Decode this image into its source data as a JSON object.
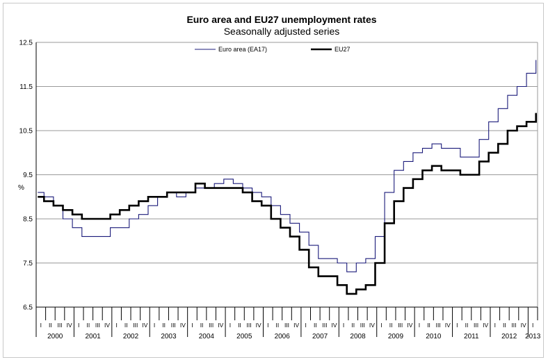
{
  "chart_data": {
    "type": "line",
    "title": "Euro area and EU27 unemployment rates",
    "subtitle": "Seasonally adjusted series",
    "ylabel": "%",
    "ylim": [
      6.5,
      12.5
    ],
    "yticks": [
      "12.5",
      "11.5",
      "10.5",
      "9.5",
      "8.5",
      "7.5",
      "6.5"
    ],
    "quarter_labels": [
      "I",
      "II",
      "III",
      "IV"
    ],
    "years": [
      "2000",
      "2001",
      "2002",
      "2003",
      "2004",
      "2005",
      "2006",
      "2007",
      "2008",
      "2009",
      "2010",
      "2011",
      "2012",
      "2013"
    ],
    "x_start": "2000-01",
    "x_end": "2013-03",
    "legend_position": "top",
    "grid": "horizontal",
    "series": [
      {
        "name": "Euro area (EA17)",
        "color": "#1a1a7a",
        "points": [
          [
            "2000-01",
            9.1
          ],
          [
            "2000-03",
            9.0
          ],
          [
            "2000-06",
            8.8
          ],
          [
            "2000-09",
            8.5
          ],
          [
            "2000-12",
            8.3
          ],
          [
            "2001-03",
            8.1
          ],
          [
            "2001-06",
            8.1
          ],
          [
            "2001-09",
            8.1
          ],
          [
            "2001-12",
            8.3
          ],
          [
            "2002-03",
            8.3
          ],
          [
            "2002-06",
            8.5
          ],
          [
            "2002-09",
            8.6
          ],
          [
            "2002-12",
            8.8
          ],
          [
            "2003-03",
            9.0
          ],
          [
            "2003-06",
            9.1
          ],
          [
            "2003-09",
            9.0
          ],
          [
            "2003-12",
            9.1
          ],
          [
            "2004-03",
            9.2
          ],
          [
            "2004-06",
            9.2
          ],
          [
            "2004-09",
            9.3
          ],
          [
            "2004-12",
            9.4
          ],
          [
            "2005-03",
            9.3
          ],
          [
            "2005-06",
            9.2
          ],
          [
            "2005-09",
            9.1
          ],
          [
            "2005-12",
            9.0
          ],
          [
            "2006-03",
            8.8
          ],
          [
            "2006-06",
            8.6
          ],
          [
            "2006-09",
            8.4
          ],
          [
            "2006-12",
            8.2
          ],
          [
            "2007-03",
            7.9
          ],
          [
            "2007-06",
            7.6
          ],
          [
            "2007-09",
            7.6
          ],
          [
            "2007-12",
            7.5
          ],
          [
            "2008-03",
            7.3
          ],
          [
            "2008-06",
            7.5
          ],
          [
            "2008-09",
            7.6
          ],
          [
            "2008-12",
            8.1
          ],
          [
            "2009-03",
            9.1
          ],
          [
            "2009-06",
            9.6
          ],
          [
            "2009-09",
            9.8
          ],
          [
            "2009-12",
            10.0
          ],
          [
            "2010-03",
            10.1
          ],
          [
            "2010-06",
            10.2
          ],
          [
            "2010-09",
            10.1
          ],
          [
            "2010-12",
            10.1
          ],
          [
            "2011-03",
            9.9
          ],
          [
            "2011-06",
            9.9
          ],
          [
            "2011-09",
            10.3
          ],
          [
            "2011-12",
            10.7
          ],
          [
            "2012-03",
            11.0
          ],
          [
            "2012-06",
            11.3
          ],
          [
            "2012-09",
            11.5
          ],
          [
            "2012-12",
            11.8
          ],
          [
            "2013-03",
            12.1
          ]
        ]
      },
      {
        "name": "EU27",
        "color": "#000000",
        "points": [
          [
            "2000-01",
            9.0
          ],
          [
            "2000-03",
            8.9
          ],
          [
            "2000-06",
            8.8
          ],
          [
            "2000-09",
            8.7
          ],
          [
            "2000-12",
            8.6
          ],
          [
            "2001-03",
            8.5
          ],
          [
            "2001-06",
            8.5
          ],
          [
            "2001-09",
            8.5
          ],
          [
            "2001-12",
            8.6
          ],
          [
            "2002-03",
            8.7
          ],
          [
            "2002-06",
            8.8
          ],
          [
            "2002-09",
            8.9
          ],
          [
            "2002-12",
            9.0
          ],
          [
            "2003-03",
            9.0
          ],
          [
            "2003-06",
            9.1
          ],
          [
            "2003-09",
            9.1
          ],
          [
            "2003-12",
            9.1
          ],
          [
            "2004-03",
            9.3
          ],
          [
            "2004-06",
            9.2
          ],
          [
            "2004-09",
            9.2
          ],
          [
            "2004-12",
            9.2
          ],
          [
            "2005-03",
            9.2
          ],
          [
            "2005-06",
            9.1
          ],
          [
            "2005-09",
            8.9
          ],
          [
            "2005-12",
            8.8
          ],
          [
            "2006-03",
            8.5
          ],
          [
            "2006-06",
            8.3
          ],
          [
            "2006-09",
            8.1
          ],
          [
            "2006-12",
            7.8
          ],
          [
            "2007-03",
            7.4
          ],
          [
            "2007-06",
            7.2
          ],
          [
            "2007-09",
            7.2
          ],
          [
            "2007-12",
            7.0
          ],
          [
            "2008-03",
            6.8
          ],
          [
            "2008-06",
            6.9
          ],
          [
            "2008-09",
            7.0
          ],
          [
            "2008-12",
            7.5
          ],
          [
            "2009-03",
            8.4
          ],
          [
            "2009-06",
            8.9
          ],
          [
            "2009-09",
            9.2
          ],
          [
            "2009-12",
            9.4
          ],
          [
            "2010-03",
            9.6
          ],
          [
            "2010-06",
            9.7
          ],
          [
            "2010-09",
            9.6
          ],
          [
            "2010-12",
            9.6
          ],
          [
            "2011-03",
            9.5
          ],
          [
            "2011-06",
            9.5
          ],
          [
            "2011-09",
            9.8
          ],
          [
            "2011-12",
            10.0
          ],
          [
            "2012-03",
            10.2
          ],
          [
            "2012-06",
            10.5
          ],
          [
            "2012-09",
            10.6
          ],
          [
            "2012-12",
            10.7
          ],
          [
            "2013-03",
            10.9
          ]
        ]
      }
    ]
  }
}
